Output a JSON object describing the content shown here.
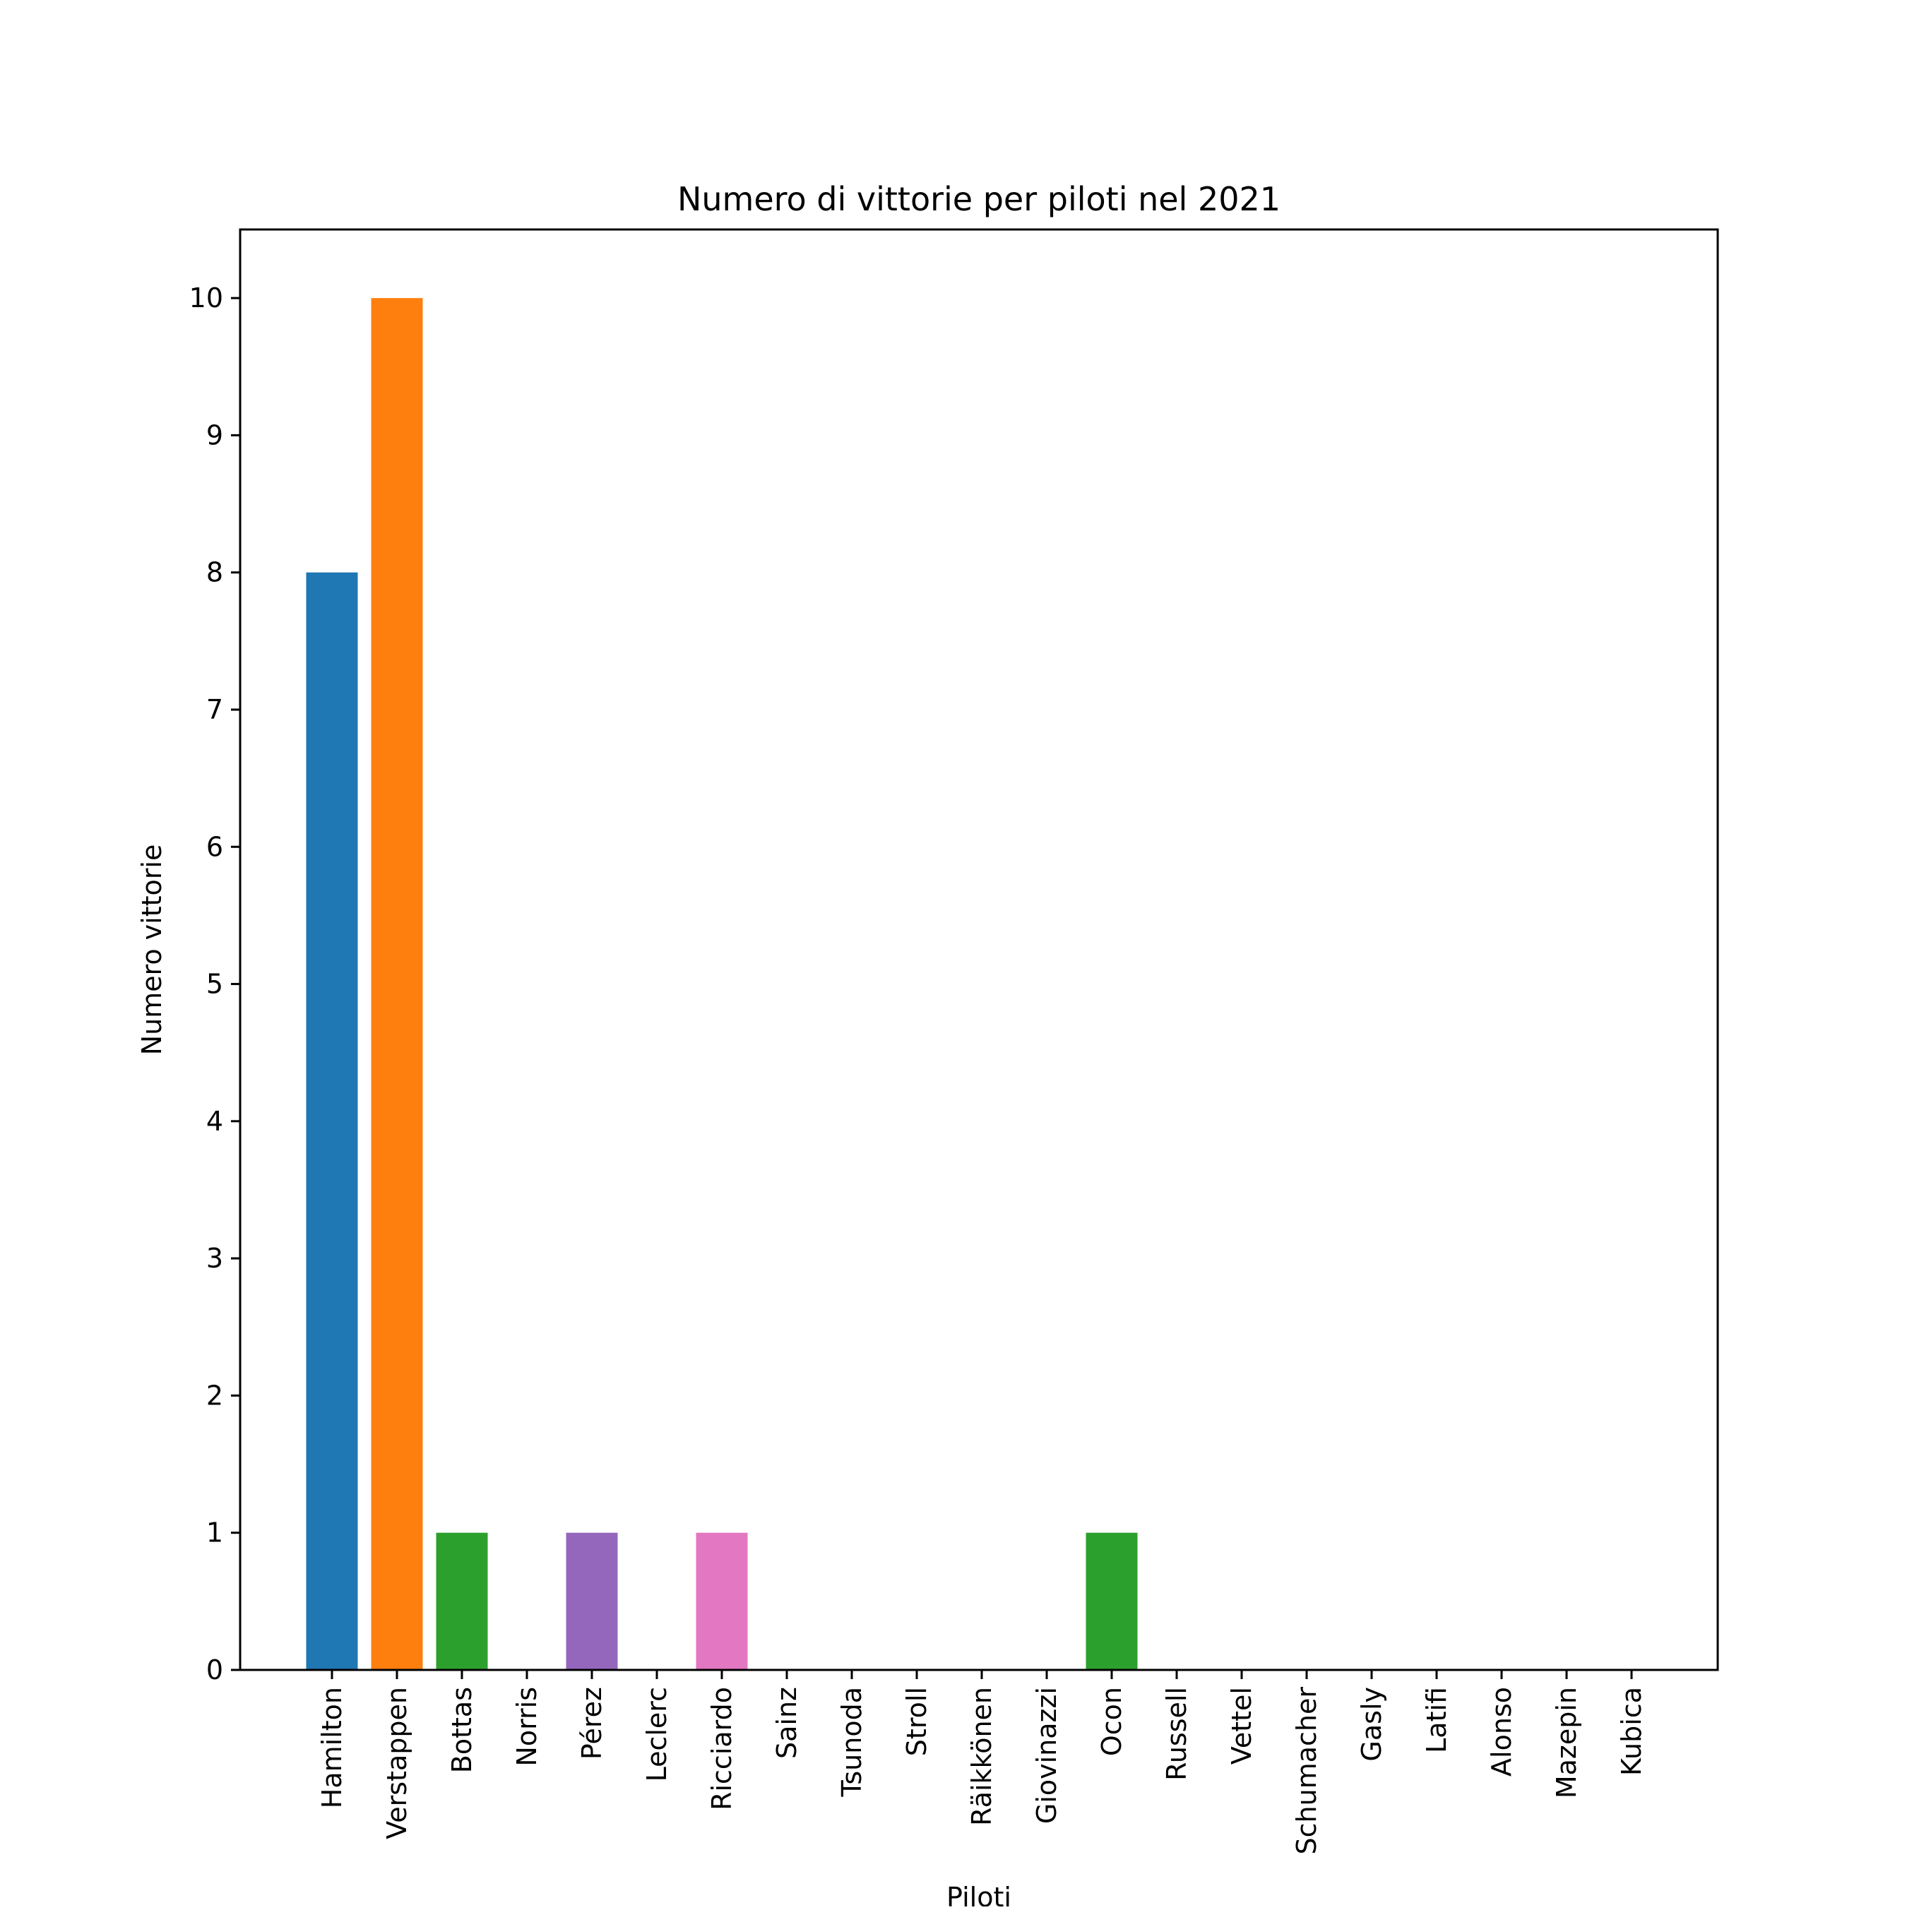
{
  "chart_data": {
    "type": "bar",
    "title": "Numero di vittorie per piloti nel 2021",
    "xlabel": "Piloti",
    "ylabel": "Numero vittorie",
    "ylim": [
      0,
      10.5
    ],
    "yticks": [
      "0",
      "1",
      "2",
      "3",
      "4",
      "5",
      "6",
      "7",
      "8",
      "9",
      "10"
    ],
    "grid": false,
    "categories": [
      "Hamilton",
      "Verstappen",
      "Bottas",
      "Norris",
      "Pérez",
      "Leclerc",
      "Ricciardo",
      "Sainz",
      "Tsunoda",
      "Stroll",
      "Räikkönen",
      "Giovinazzi",
      "Ocon",
      "Russell",
      "Vettel",
      "Schumacher",
      "Gasly",
      "Latifi",
      "Alonso",
      "Mazepin",
      "Kubica"
    ],
    "values": [
      8,
      10,
      1,
      0,
      1,
      0,
      1,
      0,
      0,
      0,
      0,
      0,
      1,
      0,
      0,
      0,
      0,
      0,
      0,
      0,
      0
    ],
    "colors": [
      "#1f77b4",
      "#ff7f0e",
      "#2ca02c",
      "#d62728",
      "#9467bd",
      "#8c564b",
      "#e377c2",
      "#7f7f7f",
      "#bcbd22",
      "#17becf",
      "#1f77b4",
      "#ff7f0e",
      "#2ca02c",
      "#d62728",
      "#9467bd",
      "#8c564b",
      "#e377c2",
      "#7f7f7f",
      "#bcbd22",
      "#17becf",
      "#1f77b4"
    ]
  }
}
